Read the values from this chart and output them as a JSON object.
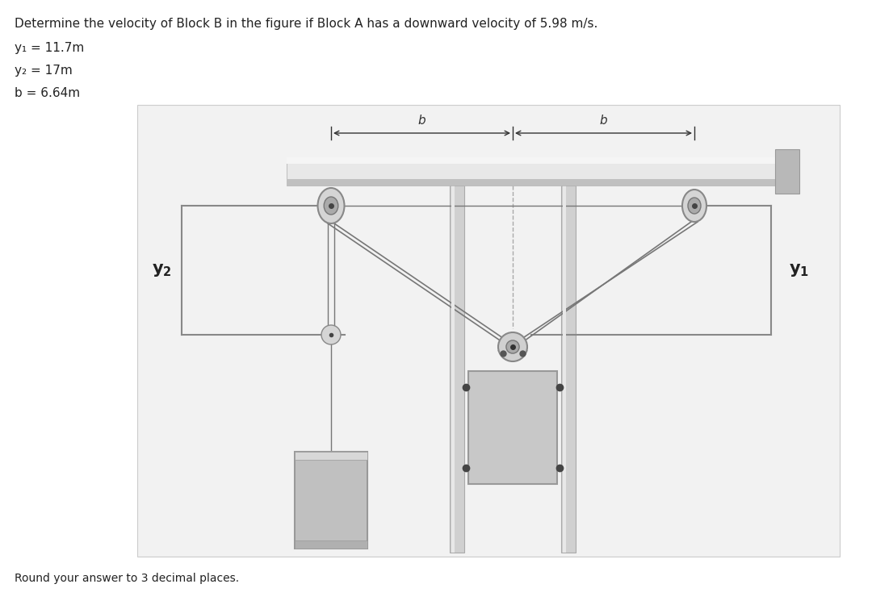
{
  "title": "Determine the velocity of Block B in the figure if Block A has a downward velocity of 5.98 m/s.",
  "y1_label": "y₁ = 11.7m",
  "y2_label": "y₂ = 17m",
  "b_label": "b = 6.64m",
  "footer": "Round your answer to 3 decimal places.",
  "text_color": "#222222",
  "bg_panel": "#f2f2f2",
  "rope_color": "#777777",
  "rail_bar_color": "#d0d0d0",
  "rail_bar_edge": "#aaaaaa",
  "block_face": "#c0c0c0",
  "block_edge": "#888888",
  "pulley_outer": "#d8d8d8",
  "pulley_inner": "#aaaaaa",
  "pulley_edge": "#888888",
  "frame_color": "#888888",
  "dashed_color": "#aaaaaa",
  "anno_color": "#333333",
  "title_fs": 11,
  "param_fs": 11,
  "label_fs": 15,
  "footer_fs": 10
}
